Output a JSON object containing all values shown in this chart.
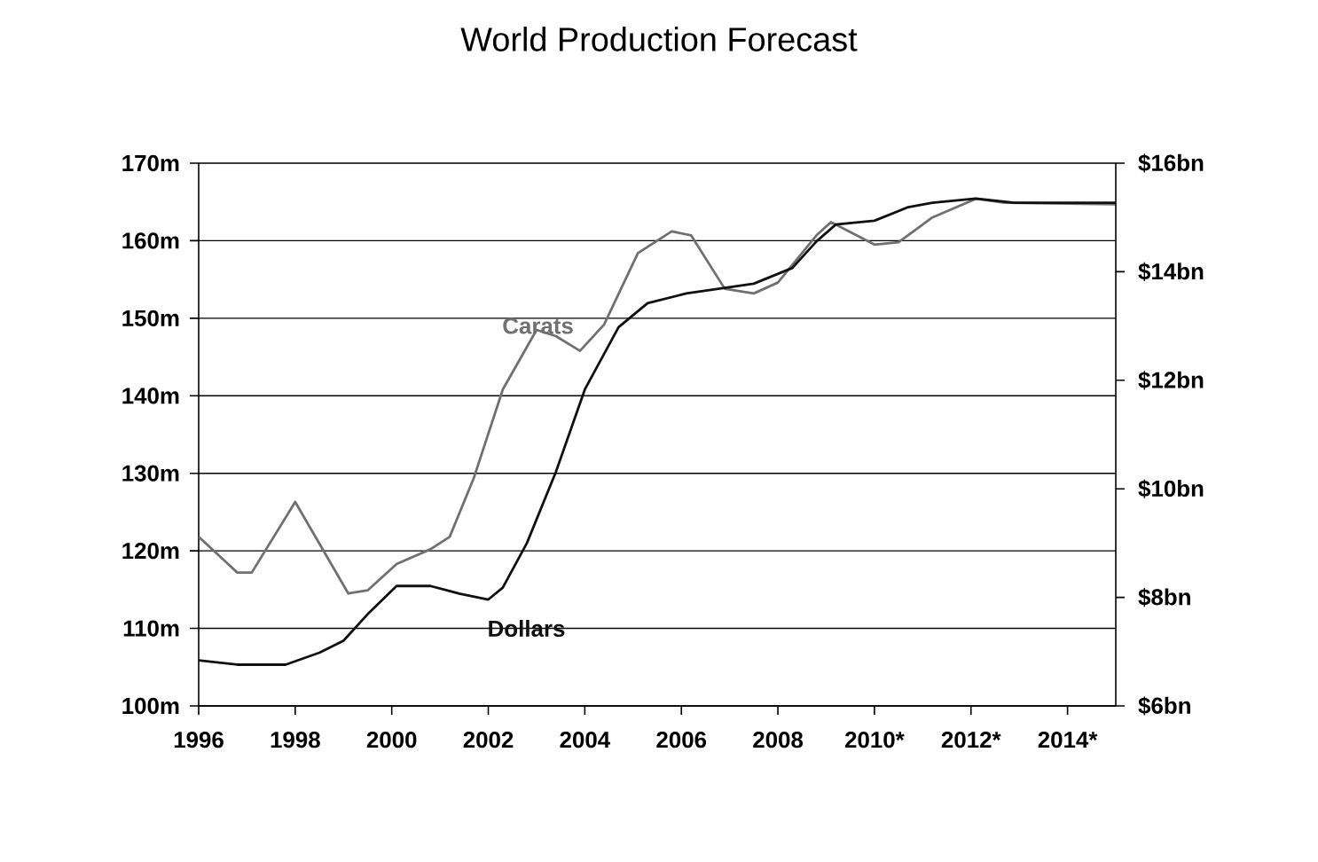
{
  "chart_data": {
    "type": "line",
    "title": "World Production Forecast",
    "xlim": [
      1996,
      2015
    ],
    "xticks": [
      1996,
      1998,
      2000,
      2002,
      2004,
      2006,
      2008,
      {
        "value": 2010,
        "label": "2010*"
      },
      {
        "value": 2012,
        "label": "2012*"
      },
      {
        "value": 2014,
        "label": "2014*"
      }
    ],
    "ylim": [
      100,
      170
    ],
    "yticks": [
      {
        "value": 100,
        "label": "100m"
      },
      {
        "value": 110,
        "label": "110m"
      },
      {
        "value": 120,
        "label": "120m"
      },
      {
        "value": 130,
        "label": "130m"
      },
      {
        "value": 140,
        "label": "140m"
      },
      {
        "value": 150,
        "label": "150m"
      },
      {
        "value": 160,
        "label": "160m"
      },
      {
        "value": 170,
        "label": "170m"
      }
    ],
    "y2lim": [
      6,
      16
    ],
    "y2ticks": [
      {
        "value": 6,
        "label": "$6bn"
      },
      {
        "value": 8,
        "label": "$8bn"
      },
      {
        "value": 10,
        "label": "$10bn"
      },
      {
        "value": 12,
        "label": "$12bn"
      },
      {
        "value": 14,
        "label": "$14bn"
      },
      {
        "value": 16,
        "label": "$16bn"
      }
    ],
    "grid": "y",
    "series": [
      {
        "name": "Carats",
        "color": "#707070",
        "x": [
          1996.0,
          1996.8,
          1997.1,
          1998.0,
          1999.1,
          1999.5,
          2000.1,
          2000.8,
          2001.2,
          2001.7,
          2002.3,
          2003.0,
          2003.4,
          2003.9,
          2004.4,
          2005.1,
          2005.8,
          2006.2,
          2006.9,
          2007.5,
          2008.0,
          2008.8,
          2009.1,
          2010.0,
          2010.5,
          2011.2,
          2012.1,
          2012.7,
          2015.0
        ],
        "values": [
          121.8,
          117.2,
          117.2,
          126.3,
          114.5,
          114.9,
          118.3,
          120.2,
          121.8,
          129.4,
          140.8,
          148.5,
          147.7,
          145.8,
          149.2,
          158.4,
          161.2,
          160.7,
          153.8,
          153.2,
          154.6,
          160.7,
          162.4,
          159.5,
          159.8,
          163.0,
          165.4,
          164.9,
          164.7
        ]
      },
      {
        "name": "Dollars",
        "color": "#101010",
        "axis": "y2",
        "x": [
          1996.0,
          1996.8,
          1997.8,
          1998.5,
          1999.0,
          1999.5,
          2000.1,
          2000.8,
          2001.4,
          2002.0,
          2002.3,
          2002.8,
          2003.4,
          2004.0,
          2004.7,
          2005.3,
          2006.1,
          2007.5,
          2008.3,
          2008.8,
          2009.2,
          2010.0,
          2010.7,
          2011.2,
          2012.1,
          2012.9,
          2015.0
        ],
        "values": [
          6.84,
          6.76,
          6.76,
          6.98,
          7.2,
          7.69,
          8.21,
          8.21,
          8.07,
          7.96,
          8.18,
          9.0,
          10.31,
          11.83,
          12.98,
          13.42,
          13.6,
          13.78,
          14.07,
          14.56,
          14.87,
          14.94,
          15.19,
          15.27,
          15.35,
          15.27,
          15.27
        ]
      }
    ]
  }
}
